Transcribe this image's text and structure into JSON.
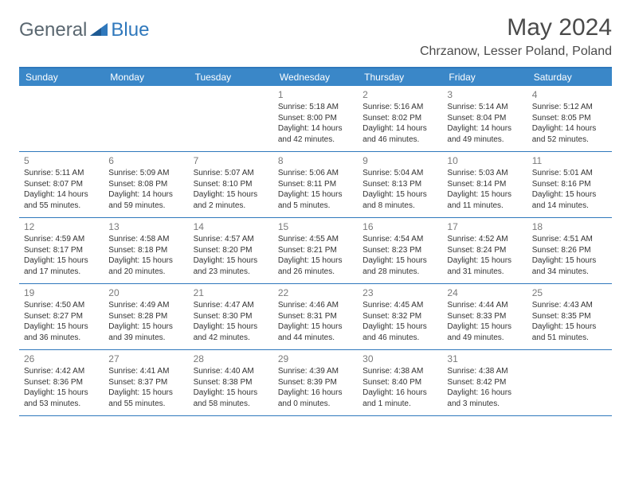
{
  "brand": {
    "part1": "General",
    "part2": "Blue"
  },
  "title": "May 2024",
  "location": "Chrzanow, Lesser Poland, Poland",
  "colors": {
    "header_bg": "#3a87c8",
    "header_border": "#2f78bc",
    "brand_gray": "#5a6770",
    "brand_blue": "#2f78bc",
    "text": "#333333",
    "daynum": "#7a7a7a",
    "title": "#4a4a4a"
  },
  "day_names": [
    "Sunday",
    "Monday",
    "Tuesday",
    "Wednesday",
    "Thursday",
    "Friday",
    "Saturday"
  ],
  "weeks": [
    [
      null,
      null,
      null,
      {
        "n": "1",
        "sr": "5:18 AM",
        "ss": "8:00 PM",
        "d1": "14 hours",
        "d2": "and 42 minutes."
      },
      {
        "n": "2",
        "sr": "5:16 AM",
        "ss": "8:02 PM",
        "d1": "14 hours",
        "d2": "and 46 minutes."
      },
      {
        "n": "3",
        "sr": "5:14 AM",
        "ss": "8:04 PM",
        "d1": "14 hours",
        "d2": "and 49 minutes."
      },
      {
        "n": "4",
        "sr": "5:12 AM",
        "ss": "8:05 PM",
        "d1": "14 hours",
        "d2": "and 52 minutes."
      }
    ],
    [
      {
        "n": "5",
        "sr": "5:11 AM",
        "ss": "8:07 PM",
        "d1": "14 hours",
        "d2": "and 55 minutes."
      },
      {
        "n": "6",
        "sr": "5:09 AM",
        "ss": "8:08 PM",
        "d1": "14 hours",
        "d2": "and 59 minutes."
      },
      {
        "n": "7",
        "sr": "5:07 AM",
        "ss": "8:10 PM",
        "d1": "15 hours",
        "d2": "and 2 minutes."
      },
      {
        "n": "8",
        "sr": "5:06 AM",
        "ss": "8:11 PM",
        "d1": "15 hours",
        "d2": "and 5 minutes."
      },
      {
        "n": "9",
        "sr": "5:04 AM",
        "ss": "8:13 PM",
        "d1": "15 hours",
        "d2": "and 8 minutes."
      },
      {
        "n": "10",
        "sr": "5:03 AM",
        "ss": "8:14 PM",
        "d1": "15 hours",
        "d2": "and 11 minutes."
      },
      {
        "n": "11",
        "sr": "5:01 AM",
        "ss": "8:16 PM",
        "d1": "15 hours",
        "d2": "and 14 minutes."
      }
    ],
    [
      {
        "n": "12",
        "sr": "4:59 AM",
        "ss": "8:17 PM",
        "d1": "15 hours",
        "d2": "and 17 minutes."
      },
      {
        "n": "13",
        "sr": "4:58 AM",
        "ss": "8:18 PM",
        "d1": "15 hours",
        "d2": "and 20 minutes."
      },
      {
        "n": "14",
        "sr": "4:57 AM",
        "ss": "8:20 PM",
        "d1": "15 hours",
        "d2": "and 23 minutes."
      },
      {
        "n": "15",
        "sr": "4:55 AM",
        "ss": "8:21 PM",
        "d1": "15 hours",
        "d2": "and 26 minutes."
      },
      {
        "n": "16",
        "sr": "4:54 AM",
        "ss": "8:23 PM",
        "d1": "15 hours",
        "d2": "and 28 minutes."
      },
      {
        "n": "17",
        "sr": "4:52 AM",
        "ss": "8:24 PM",
        "d1": "15 hours",
        "d2": "and 31 minutes."
      },
      {
        "n": "18",
        "sr": "4:51 AM",
        "ss": "8:26 PM",
        "d1": "15 hours",
        "d2": "and 34 minutes."
      }
    ],
    [
      {
        "n": "19",
        "sr": "4:50 AM",
        "ss": "8:27 PM",
        "d1": "15 hours",
        "d2": "and 36 minutes."
      },
      {
        "n": "20",
        "sr": "4:49 AM",
        "ss": "8:28 PM",
        "d1": "15 hours",
        "d2": "and 39 minutes."
      },
      {
        "n": "21",
        "sr": "4:47 AM",
        "ss": "8:30 PM",
        "d1": "15 hours",
        "d2": "and 42 minutes."
      },
      {
        "n": "22",
        "sr": "4:46 AM",
        "ss": "8:31 PM",
        "d1": "15 hours",
        "d2": "and 44 minutes."
      },
      {
        "n": "23",
        "sr": "4:45 AM",
        "ss": "8:32 PM",
        "d1": "15 hours",
        "d2": "and 46 minutes."
      },
      {
        "n": "24",
        "sr": "4:44 AM",
        "ss": "8:33 PM",
        "d1": "15 hours",
        "d2": "and 49 minutes."
      },
      {
        "n": "25",
        "sr": "4:43 AM",
        "ss": "8:35 PM",
        "d1": "15 hours",
        "d2": "and 51 minutes."
      }
    ],
    [
      {
        "n": "26",
        "sr": "4:42 AM",
        "ss": "8:36 PM",
        "d1": "15 hours",
        "d2": "and 53 minutes."
      },
      {
        "n": "27",
        "sr": "4:41 AM",
        "ss": "8:37 PM",
        "d1": "15 hours",
        "d2": "and 55 minutes."
      },
      {
        "n": "28",
        "sr": "4:40 AM",
        "ss": "8:38 PM",
        "d1": "15 hours",
        "d2": "and 58 minutes."
      },
      {
        "n": "29",
        "sr": "4:39 AM",
        "ss": "8:39 PM",
        "d1": "16 hours",
        "d2": "and 0 minutes."
      },
      {
        "n": "30",
        "sr": "4:38 AM",
        "ss": "8:40 PM",
        "d1": "16 hours",
        "d2": "and 1 minute."
      },
      {
        "n": "31",
        "sr": "4:38 AM",
        "ss": "8:42 PM",
        "d1": "16 hours",
        "d2": "and 3 minutes."
      },
      null
    ]
  ],
  "labels": {
    "sunrise": "Sunrise:",
    "sunset": "Sunset:",
    "daylight": "Daylight:"
  }
}
